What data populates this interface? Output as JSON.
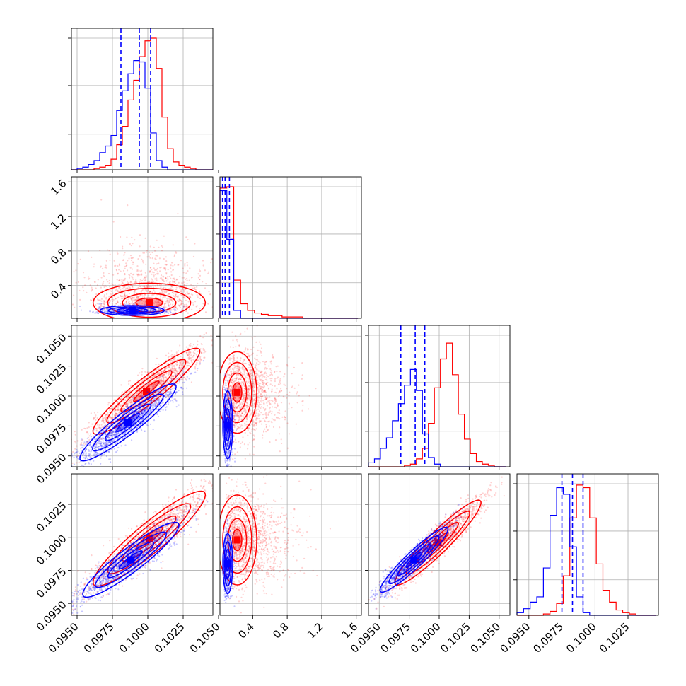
{
  "chart_data": {
    "type": "corner",
    "colors": {
      "series_a": "#ff0000",
      "series_b": "#0000ff",
      "grid": "#b0b0b0"
    },
    "axes": {
      "x_ticks_p1": [
        "0.0950",
        "0.0975",
        "0.1000",
        "0.1025",
        "0.1050"
      ],
      "x_ticks_p2": [
        "0.4",
        "0.8",
        "1.2",
        "1.6"
      ],
      "x_ticks_p3": [
        "0.0950",
        "0.0975",
        "0.1000",
        "0.1025",
        "0.1050"
      ],
      "x_ticks_p4": [
        "0.0950",
        "0.0975",
        "0.1000",
        "0.1025"
      ],
      "y_ticks_p2": [
        "0.4",
        "0.8",
        "1.2",
        "1.6"
      ],
      "y_ticks_p3": [
        "0.0950",
        "0.0975",
        "0.1000",
        "0.1025",
        "0.1050"
      ],
      "y_ticks_p4": [
        "0.0950",
        "0.0975",
        "0.1000",
        "0.1025"
      ]
    },
    "ranges": {
      "p1": [
        0.0946,
        0.1046
      ],
      "p2": [
        0.02,
        1.66
      ],
      "p3": [
        0.0941,
        0.1059
      ],
      "p4": [
        0.0941,
        0.1048
      ]
    },
    "marginals": {
      "p1": {
        "bins": [
          0.0946,
          0.095,
          0.0954,
          0.0958,
          0.0962,
          0.0966,
          0.097,
          0.0974,
          0.0978,
          0.0982,
          0.0986,
          0.099,
          0.0994,
          0.0998,
          0.1002,
          0.1006,
          0.101,
          0.1014,
          0.1018,
          0.1022,
          0.1026,
          0.103,
          0.1034,
          0.1038,
          0.1042,
          0.1046
        ],
        "red": [
          0,
          0,
          0,
          0,
          0.01,
          0.02,
          0.03,
          0.08,
          0.19,
          0.33,
          0.53,
          0.68,
          0.86,
          0.98,
          1.0,
          0.77,
          0.4,
          0.16,
          0.06,
          0.03,
          0.02,
          0.01,
          0.0,
          0,
          0
        ],
        "blue": [
          0,
          0.01,
          0.02,
          0.04,
          0.07,
          0.13,
          0.18,
          0.26,
          0.45,
          0.6,
          0.73,
          0.83,
          0.82,
          0.62,
          0.28,
          0.07,
          0.02,
          0,
          0,
          0,
          0,
          0,
          0,
          0,
          0
        ],
        "quantiles": [
          0.0981,
          0.0994,
          0.1002
        ]
      },
      "p2": {
        "bins": [
          0.02,
          0.1,
          0.18,
          0.26,
          0.34,
          0.42,
          0.5,
          0.58,
          0.66,
          0.74,
          0.82,
          0.9,
          0.98,
          1.06,
          1.14,
          1.22,
          1.3,
          1.38,
          1.46,
          1.54,
          1.62
        ],
        "red": [
          0.99,
          1.0,
          0.29,
          0.11,
          0.06,
          0.04,
          0.03,
          0.02,
          0.02,
          0.01,
          0.01,
          0.01,
          0.0,
          0.0,
          0.0,
          0.0,
          0.0,
          0.0,
          0.0,
          0.0
        ],
        "blue": [
          0.97,
          0.6,
          0.06,
          0.0,
          0,
          0,
          0,
          0,
          0,
          0,
          0,
          0,
          0,
          0,
          0,
          0,
          0,
          0,
          0,
          0
        ],
        "quantiles": [
          0.05,
          0.08,
          0.13
        ]
      },
      "p3": {
        "bins": [
          0.0941,
          0.0946,
          0.0951,
          0.0956,
          0.0961,
          0.0966,
          0.0971,
          0.0976,
          0.0981,
          0.0986,
          0.0991,
          0.0996,
          0.1001,
          0.1006,
          0.1011,
          0.1016,
          0.1021,
          0.1026,
          0.1031,
          0.1036,
          0.1041,
          0.1046,
          0.1051,
          0.1056
        ],
        "red": [
          0,
          0,
          0,
          0,
          0,
          0,
          0.01,
          0.02,
          0.06,
          0.14,
          0.33,
          0.6,
          0.82,
          0.94,
          0.7,
          0.4,
          0.21,
          0.1,
          0.04,
          0.02,
          0.01,
          0,
          0
        ],
        "blue": [
          0.03,
          0.06,
          0.14,
          0.22,
          0.35,
          0.48,
          0.62,
          0.74,
          0.58,
          0.25,
          0.07,
          0.02,
          0.0,
          0,
          0,
          0,
          0,
          0,
          0,
          0,
          0,
          0,
          0
        ],
        "quantiles": [
          0.0968,
          0.098,
          0.0988
        ]
      },
      "p4": {
        "bins": [
          0.0941,
          0.0946,
          0.0951,
          0.0956,
          0.0961,
          0.0966,
          0.0971,
          0.0976,
          0.0981,
          0.0986,
          0.0991,
          0.0996,
          0.1001,
          0.1006,
          0.1011,
          0.1016,
          0.1021,
          0.1026,
          0.1031,
          0.1036,
          0.1041,
          0.1046
        ],
        "red": [
          0,
          0,
          0,
          0,
          0.01,
          0.03,
          0.09,
          0.3,
          0.74,
          0.99,
          0.97,
          0.74,
          0.39,
          0.19,
          0.1,
          0.04,
          0.02,
          0.01,
          0,
          0,
          0
        ],
        "blue": [
          0.02,
          0.05,
          0.1,
          0.14,
          0.36,
          0.76,
          0.97,
          0.92,
          0.52,
          0.14,
          0.02,
          0,
          0,
          0,
          0,
          0,
          0,
          0,
          0,
          0,
          0
        ],
        "quantiles": [
          0.0975,
          0.0983,
          0.0991
        ]
      }
    },
    "scatter_clusters": {
      "p2_p1": {
        "red": {
          "mean": [
            0.1001,
            0.48
          ],
          "sd": [
            0.0021,
            0.28
          ],
          "count": 1100
        },
        "blue": {
          "mean": [
            0.0989,
            0.14
          ],
          "sd": [
            0.0012,
            0.045
          ],
          "count": 700
        }
      },
      "p3_p1": {
        "red": {
          "mean": [
            0.0999,
            0.1004
          ],
          "sd": [
            0.002,
            0.0019
          ],
          "corr": 0.93,
          "count": 1400
        },
        "blue": {
          "mean": [
            0.0986,
            0.0978
          ],
          "sd": [
            0.0018,
            0.0017
          ],
          "corr": 0.93,
          "count": 1400
        }
      },
      "p3_p2": {
        "red": {
          "mean": [
            0.46,
            0.1003
          ],
          "sd": [
            0.28,
            0.0018
          ],
          "count": 1300
        },
        "blue": {
          "mean": [
            0.14,
            0.0976
          ],
          "sd": [
            0.045,
            0.0015
          ],
          "count": 700
        }
      },
      "p4_p1": {
        "red": {
          "mean": [
            0.1001,
            0.0999
          ],
          "sd": [
            0.0021,
            0.0019
          ],
          "corr": 0.92,
          "count": 1400
        },
        "blue": {
          "mean": [
            0.0988,
            0.0983
          ],
          "sd": [
            0.0018,
            0.0015
          ],
          "corr": 0.92,
          "count": 1400
        }
      },
      "p4_p2": {
        "red": {
          "mean": [
            0.46,
            0.0998
          ],
          "sd": [
            0.28,
            0.0018
          ],
          "count": 1300
        },
        "blue": {
          "mean": [
            0.14,
            0.098
          ],
          "sd": [
            0.045,
            0.0012
          ],
          "count": 700
        }
      },
      "p4_p3": {
        "red": {
          "mean": [
            0.0999,
            0.0996
          ],
          "sd": [
            0.0019,
            0.0017
          ],
          "corr": 0.94,
          "count": 1400
        },
        "blue": {
          "mean": [
            0.0979,
            0.0983
          ],
          "sd": [
            0.0015,
            0.0013
          ],
          "corr": 0.94,
          "count": 1400
        }
      }
    },
    "grid": true
  }
}
